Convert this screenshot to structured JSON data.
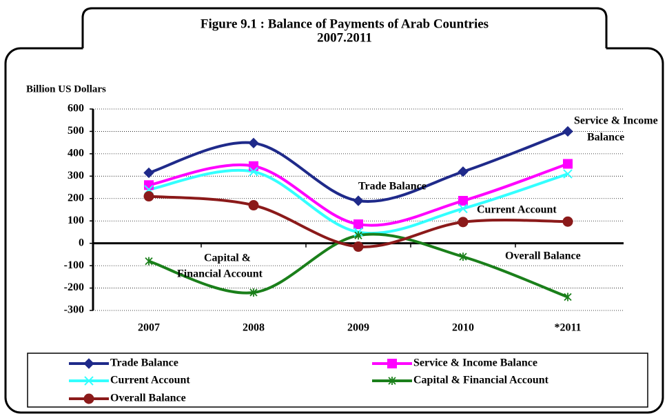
{
  "chart_data": {
    "type": "line",
    "title": "Figure 9.1 : Balance of  Payments of Arab Countries",
    "subtitle": "2007.2011",
    "y_axis_label": "Billion US Dollars",
    "categories": [
      "2007",
      "2008",
      "2009",
      "2010",
      "*2011"
    ],
    "series": [
      {
        "name": "Trade Balance",
        "color": "#1f2a8a",
        "marker": "diamond",
        "values": [
          315,
          448,
          190,
          320,
          500
        ]
      },
      {
        "name": "Service & Income Balance",
        "color": "#ff00ff",
        "marker": "square",
        "values": [
          260,
          345,
          85,
          190,
          355
        ]
      },
      {
        "name": "Current Account",
        "color": "#33ffff",
        "marker": "x",
        "values": [
          240,
          320,
          50,
          155,
          310
        ]
      },
      {
        "name": "Capital & Financial Account",
        "color": "#1a7f1a",
        "marker": "star",
        "values": [
          -80,
          -220,
          35,
          -60,
          -240
        ]
      },
      {
        "name": "Overall Balance",
        "color": "#8b1a1a",
        "marker": "circle",
        "values": [
          210,
          170,
          -15,
          95,
          97
        ]
      }
    ],
    "ylim": [
      -300,
      600
    ],
    "yticks": [
      -300,
      -200,
      -100,
      0,
      100,
      200,
      300,
      400,
      500,
      600
    ],
    "grid": true,
    "smooth": true,
    "legend": "bottom",
    "annotations": [
      "Service & Income",
      "Balance",
      "Trade Balance",
      "Current Account",
      "Overall Balance",
      "Capital &",
      "Financial Account"
    ]
  }
}
